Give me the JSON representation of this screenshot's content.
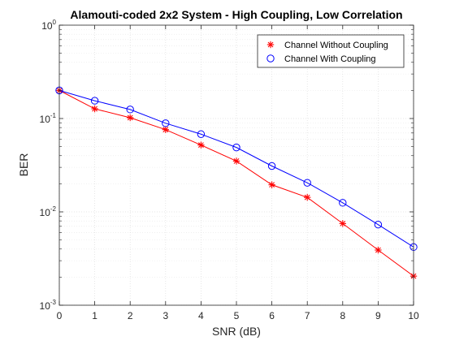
{
  "chart_data": {
    "type": "line",
    "title": "Alamouti-coded 2x2 System - High Coupling, Low Correlation",
    "xlabel": "SNR (dB)",
    "ylabel": "BER",
    "yscale": "log",
    "xlim": [
      0,
      10
    ],
    "ylim": [
      0.001,
      1
    ],
    "x_ticks": [
      "0",
      "1",
      "2",
      "3",
      "4",
      "5",
      "6",
      "7",
      "8",
      "9",
      "10"
    ],
    "y_ticks": [
      {
        "base": "10",
        "exp": "-3",
        "value": 0.001
      },
      {
        "base": "10",
        "exp": "-2",
        "value": 0.01
      },
      {
        "base": "10",
        "exp": "-1",
        "value": 0.1
      },
      {
        "base": "10",
        "exp": "0",
        "value": 1
      }
    ],
    "grid": true,
    "minor_grid": true,
    "legend_position": "top-right",
    "x": [
      0,
      1,
      2,
      3,
      4,
      5,
      6,
      7,
      8,
      9,
      10
    ],
    "series": [
      {
        "name": "Channel Without Coupling",
        "color": "#ff0000",
        "marker": "asterisk",
        "values": [
          0.2,
          0.127,
          0.102,
          0.076,
          0.052,
          0.035,
          0.0195,
          0.0143,
          0.0075,
          0.0039,
          0.00205
        ]
      },
      {
        "name": "Channel With Coupling",
        "color": "#0000ff",
        "marker": "circle",
        "values": [
          0.2,
          0.155,
          0.125,
          0.089,
          0.068,
          0.049,
          0.031,
          0.0205,
          0.0125,
          0.0073,
          0.0042
        ]
      }
    ]
  }
}
